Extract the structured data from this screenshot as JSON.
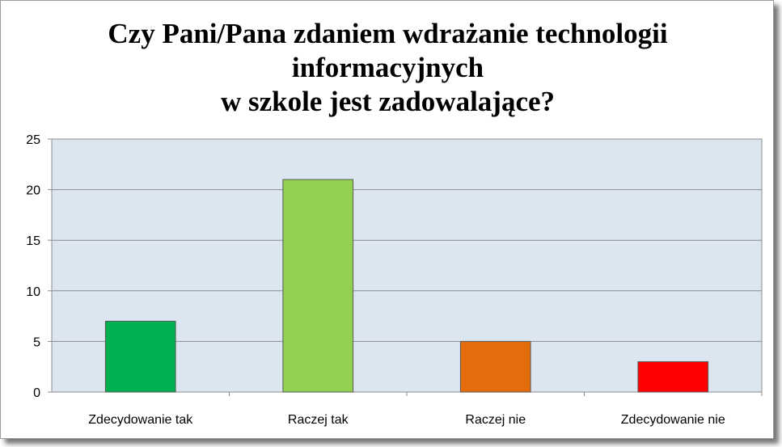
{
  "chart_data": {
    "type": "bar",
    "title_lines": [
      "Czy Pani/Pana zdaniem wdrażanie technologii",
      "informacyjnych",
      "w szkole jest zadowalające?"
    ],
    "categories": [
      "Zdecydowanie tak",
      "Raczej tak",
      "Raczej nie",
      "Zdecydowanie nie"
    ],
    "values": [
      7,
      21,
      5,
      3
    ],
    "bar_colors": [
      "#00b050",
      "#92d050",
      "#e46c0a",
      "#ff0000"
    ],
    "ylim": [
      0,
      25
    ],
    "yticks": [
      0,
      5,
      10,
      15,
      20,
      25
    ],
    "grid": true,
    "plot_background": "#dce6f1",
    "legend": "none"
  }
}
